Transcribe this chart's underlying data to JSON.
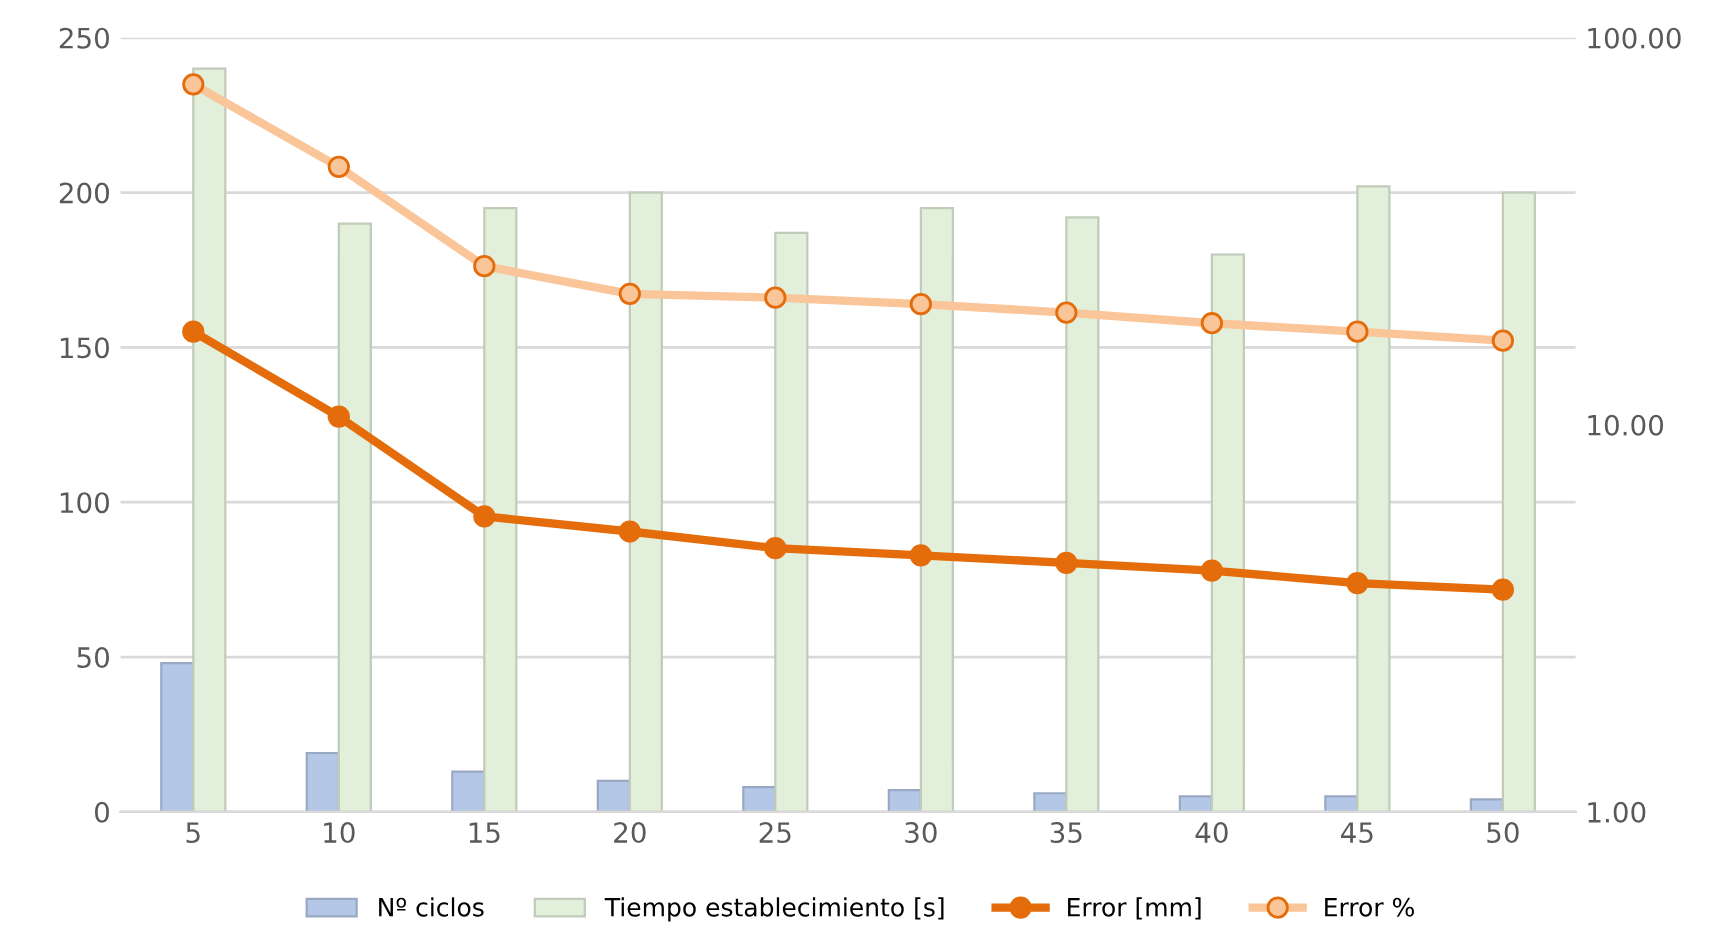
{
  "chart_data": {
    "type": "bar",
    "categories": [
      "5",
      "10",
      "15",
      "20",
      "25",
      "30",
      "35",
      "40",
      "45",
      "50"
    ],
    "series": [
      {
        "name": "Nº ciclos",
        "color": "#b4c7e7",
        "values": [
          48,
          19,
          13,
          10,
          8,
          7,
          6,
          5,
          5,
          4
        ]
      },
      {
        "name": "Tiempo establecimiento [s]",
        "color": "#e2efda",
        "values": [
          240,
          190,
          195,
          200,
          187,
          195,
          192,
          180,
          202,
          200
        ]
      },
      {
        "name": "Error [mm]",
        "type": "line",
        "axis": "y2",
        "marker": "circle",
        "color": "#e46c0a",
        "values": [
          17.4,
          10.5,
          5.8,
          5.3,
          4.8,
          4.6,
          4.4,
          4.2,
          3.9,
          3.75
        ]
      },
      {
        "name": "Error %",
        "type": "line",
        "axis": "y2",
        "marker": "circle",
        "color": "#fbc59a",
        "values": [
          75.8,
          46.4,
          25.7,
          21.8,
          21.3,
          20.5,
          19.5,
          18.3,
          17.4,
          16.5
        ]
      }
    ],
    "ylim": [
      0,
      250
    ],
    "yticks": [
      0,
      50,
      100,
      150,
      200,
      250
    ],
    "log": "y2",
    "y2lim": [
      1,
      100
    ],
    "y2ticks": [
      {
        "value": 1,
        "label": "1.00"
      },
      {
        "value": 10,
        "label": "10.00"
      },
      {
        "value": 100,
        "label": "100.00"
      }
    ],
    "grid": "y",
    "legend": "bottom"
  }
}
